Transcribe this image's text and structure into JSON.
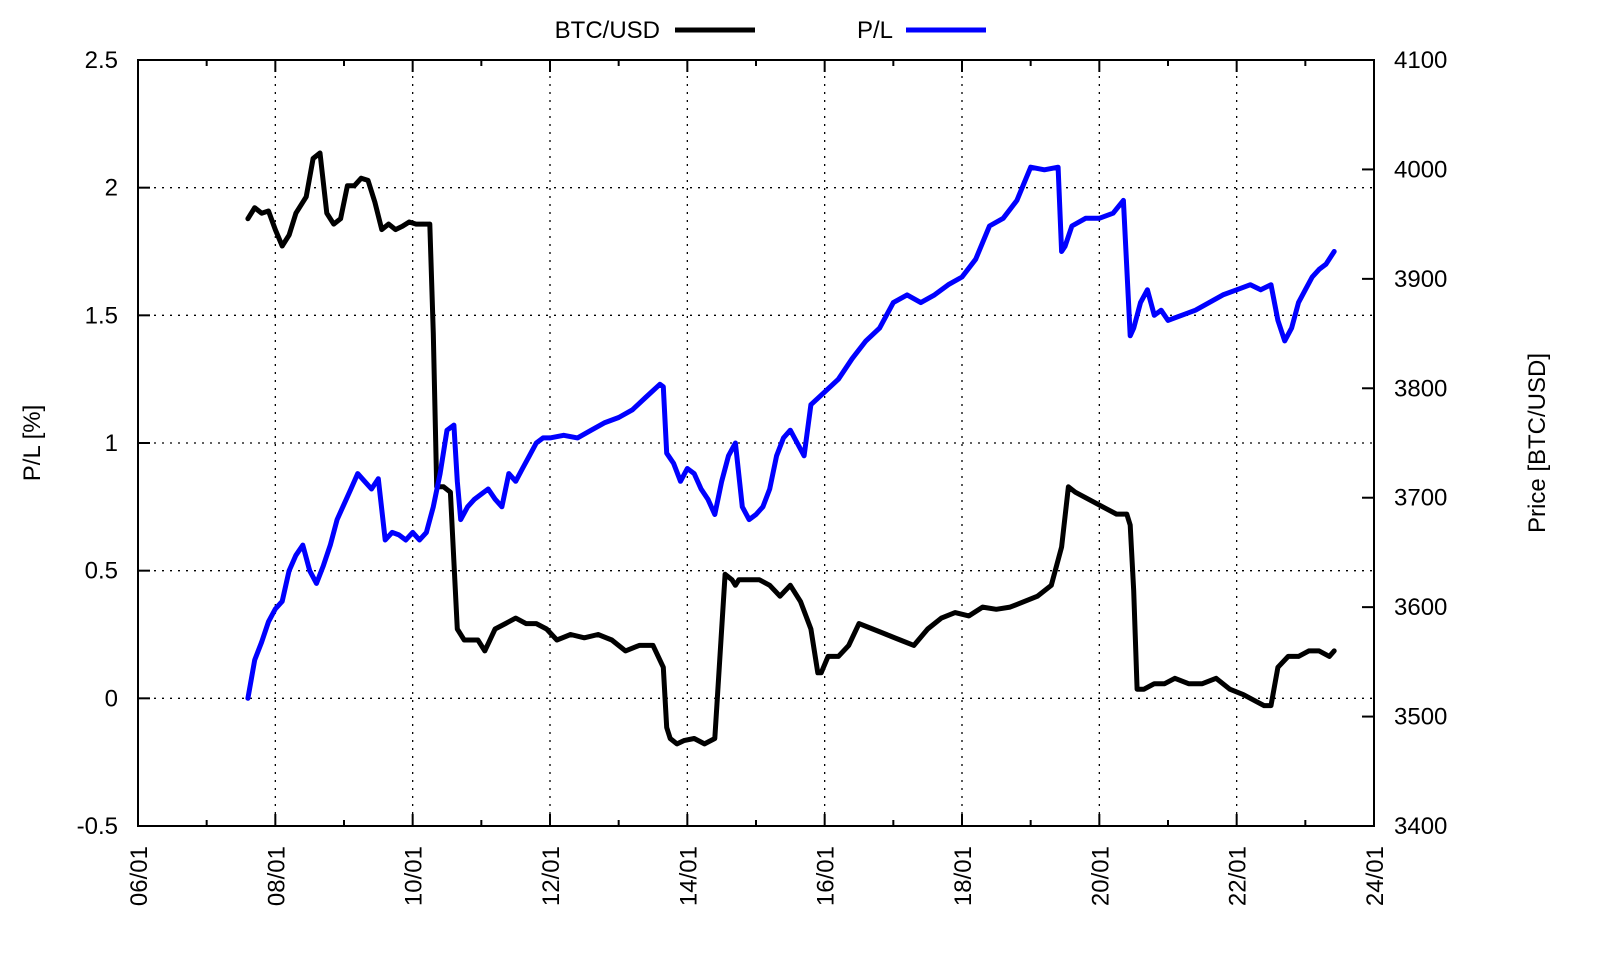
{
  "chart_data": {
    "type": "line",
    "title": "",
    "xlabel": "",
    "ylabel": "P/L [%]",
    "y2label": "Price [BTC/USD]",
    "x_ticks": [
      "06/01",
      "08/01",
      "10/01",
      "12/01",
      "14/01",
      "16/01",
      "18/01",
      "20/01",
      "22/01",
      "24/01"
    ],
    "xlim": [
      6,
      24
    ],
    "ylim": [
      -0.5,
      2.5
    ],
    "y_ticks": [
      "-0.5",
      "0",
      "0.5",
      "1",
      "1.5",
      "2",
      "2.5"
    ],
    "y2lim": [
      3400,
      4100
    ],
    "y2_ticks": [
      "3400",
      "3500",
      "3600",
      "3700",
      "3800",
      "3900",
      "4000",
      "4100"
    ],
    "grid": true,
    "legend_position": "top",
    "series": [
      {
        "name": "BTC/USD",
        "axis": "right",
        "color": "#000000",
        "x": [
          7.6,
          7.7,
          7.8,
          7.9,
          8.0,
          8.1,
          8.2,
          8.3,
          8.45,
          8.55,
          8.65,
          8.75,
          8.85,
          8.95,
          9.05,
          9.15,
          9.25,
          9.35,
          9.45,
          9.55,
          9.65,
          9.75,
          9.85,
          9.95,
          10.05,
          10.15,
          10.25,
          10.3,
          10.35,
          10.45,
          10.55,
          10.65,
          10.75,
          10.85,
          10.95,
          11.05,
          11.2,
          11.35,
          11.5,
          11.65,
          11.8,
          11.95,
          12.1,
          12.3,
          12.5,
          12.7,
          12.9,
          13.1,
          13.3,
          13.5,
          13.65,
          13.7,
          13.75,
          13.85,
          13.95,
          14.1,
          14.25,
          14.4,
          14.55,
          14.65,
          14.7,
          14.75,
          14.9,
          15.05,
          15.2,
          15.35,
          15.5,
          15.65,
          15.8,
          15.9,
          15.95,
          16.05,
          16.2,
          16.35,
          16.5,
          16.7,
          16.9,
          17.1,
          17.3,
          17.5,
          17.7,
          17.9,
          18.1,
          18.3,
          18.5,
          18.7,
          18.9,
          19.1,
          19.3,
          19.45,
          19.55,
          19.65,
          19.8,
          19.95,
          20.1,
          20.25,
          20.4,
          20.45,
          20.5,
          20.55,
          20.65,
          20.8,
          20.95,
          21.1,
          21.3,
          21.5,
          21.7,
          21.9,
          22.1,
          22.25,
          22.4,
          22.5,
          22.6,
          22.75,
          22.9,
          23.05,
          23.2,
          23.35,
          23.42
        ],
        "values": [
          3955,
          3965,
          3960,
          3962,
          3945,
          3930,
          3940,
          3960,
          3975,
          4010,
          4015,
          3960,
          3950,
          3955,
          3985,
          3985,
          3992,
          3990,
          3970,
          3945,
          3950,
          3945,
          3948,
          3952,
          3950,
          3950,
          3950,
          3850,
          3710,
          3710,
          3705,
          3580,
          3570,
          3570,
          3570,
          3560,
          3580,
          3585,
          3590,
          3585,
          3585,
          3580,
          3570,
          3575,
          3572,
          3575,
          3570,
          3560,
          3565,
          3565,
          3545,
          3490,
          3480,
          3475,
          3478,
          3480,
          3475,
          3480,
          3630,
          3625,
          3620,
          3625,
          3625,
          3625,
          3620,
          3610,
          3620,
          3605,
          3580,
          3540,
          3540,
          3555,
          3555,
          3565,
          3585,
          3580,
          3575,
          3570,
          3565,
          3580,
          3590,
          3595,
          3592,
          3600,
          3598,
          3600,
          3605,
          3610,
          3620,
          3655,
          3710,
          3705,
          3700,
          3695,
          3690,
          3685,
          3685,
          3675,
          3615,
          3525,
          3525,
          3530,
          3530,
          3535,
          3530,
          3530,
          3535,
          3525,
          3520,
          3515,
          3510,
          3510,
          3545,
          3555,
          3555,
          3560,
          3560,
          3555,
          3560
        ],
        "label": "BTC/USD"
      },
      {
        "name": "P/L",
        "axis": "left",
        "color": "#0000ff",
        "x": [
          7.6,
          7.7,
          7.8,
          7.9,
          8.0,
          8.1,
          8.2,
          8.3,
          8.4,
          8.5,
          8.6,
          8.7,
          8.8,
          8.9,
          9.0,
          9.1,
          9.2,
          9.3,
          9.4,
          9.5,
          9.6,
          9.7,
          9.8,
          9.9,
          10.0,
          10.1,
          10.2,
          10.3,
          10.4,
          10.5,
          10.6,
          10.65,
          10.7,
          10.8,
          10.9,
          11.0,
          11.1,
          11.2,
          11.3,
          11.4,
          11.5,
          11.6,
          11.7,
          11.8,
          11.9,
          12.0,
          12.2,
          12.4,
          12.6,
          12.8,
          13.0,
          13.2,
          13.4,
          13.6,
          13.65,
          13.7,
          13.8,
          13.9,
          14.0,
          14.1,
          14.2,
          14.3,
          14.4,
          14.5,
          14.6,
          14.7,
          14.8,
          14.9,
          15.0,
          15.1,
          15.2,
          15.3,
          15.4,
          15.5,
          15.6,
          15.7,
          15.8,
          16.0,
          16.2,
          16.4,
          16.6,
          16.8,
          17.0,
          17.2,
          17.4,
          17.6,
          17.8,
          18.0,
          18.2,
          18.4,
          18.6,
          18.8,
          19.0,
          19.2,
          19.4,
          19.45,
          19.5,
          19.6,
          19.8,
          20.0,
          20.2,
          20.35,
          20.45,
          20.5,
          20.6,
          20.7,
          20.8,
          20.9,
          21.0,
          21.2,
          21.4,
          21.6,
          21.8,
          22.0,
          22.2,
          22.35,
          22.5,
          22.6,
          22.7,
          22.8,
          22.9,
          23.0,
          23.1,
          23.2,
          23.3,
          23.42
        ],
        "values": [
          0.0,
          0.15,
          0.22,
          0.3,
          0.35,
          0.38,
          0.5,
          0.56,
          0.6,
          0.5,
          0.45,
          0.52,
          0.6,
          0.7,
          0.76,
          0.82,
          0.88,
          0.85,
          0.82,
          0.86,
          0.62,
          0.65,
          0.64,
          0.62,
          0.65,
          0.62,
          0.65,
          0.75,
          0.88,
          1.05,
          1.07,
          0.85,
          0.7,
          0.75,
          0.78,
          0.8,
          0.82,
          0.78,
          0.75,
          0.88,
          0.85,
          0.9,
          0.95,
          1.0,
          1.02,
          1.02,
          1.03,
          1.02,
          1.05,
          1.08,
          1.1,
          1.13,
          1.18,
          1.23,
          1.22,
          0.96,
          0.92,
          0.85,
          0.9,
          0.88,
          0.82,
          0.78,
          0.72,
          0.85,
          0.95,
          1.0,
          0.75,
          0.7,
          0.72,
          0.75,
          0.82,
          0.95,
          1.02,
          1.05,
          1.0,
          0.95,
          1.15,
          1.2,
          1.25,
          1.33,
          1.4,
          1.45,
          1.55,
          1.58,
          1.55,
          1.58,
          1.62,
          1.65,
          1.72,
          1.85,
          1.88,
          1.95,
          2.08,
          2.07,
          2.08,
          1.75,
          1.77,
          1.85,
          1.88,
          1.88,
          1.9,
          1.95,
          1.42,
          1.45,
          1.55,
          1.6,
          1.5,
          1.52,
          1.48,
          1.5,
          1.52,
          1.55,
          1.58,
          1.6,
          1.62,
          1.6,
          1.62,
          1.48,
          1.4,
          1.45,
          1.55,
          1.6,
          1.65,
          1.68,
          1.7,
          1.75
        ],
        "label": "P/L"
      }
    ]
  }
}
